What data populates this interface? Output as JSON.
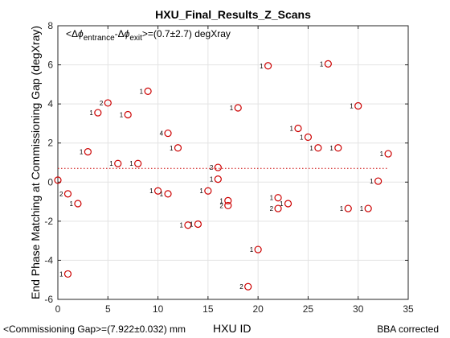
{
  "chart_data": {
    "type": "scatter",
    "title": "HXU_Final_Results_Z_Scans",
    "xlabel": "HXU ID",
    "ylabel": "End Phase Matching at Commissioning Gap (degXray)",
    "xlim": [
      0,
      35
    ],
    "ylim": [
      -6,
      8
    ],
    "xticks": [
      0,
      5,
      10,
      15,
      20,
      25,
      30,
      35
    ],
    "yticks": [
      -6,
      -4,
      -2,
      0,
      2,
      4,
      6,
      8
    ],
    "grid": true,
    "annotation": {
      "prefix": "<Δ",
      "phi1": "ϕ",
      "sub1": "entrance",
      "mid": "-Δ",
      "phi2": "ϕ",
      "sub2": "exit",
      "suffix": ">=(0.7±2.7) degXray"
    },
    "reference_line": {
      "y": 0.7,
      "color": "#cc0000",
      "style": "dotted"
    },
    "marker_color": "#cc0000",
    "points": [
      {
        "x": 0,
        "y": 0.1,
        "label": ""
      },
      {
        "x": 1,
        "y": -0.6,
        "label": "2"
      },
      {
        "x": 1,
        "y": -4.7,
        "label": "1"
      },
      {
        "x": 2,
        "y": -1.1,
        "label": "1"
      },
      {
        "x": 3,
        "y": 1.55,
        "label": "1"
      },
      {
        "x": 4,
        "y": 3.55,
        "label": "1"
      },
      {
        "x": 5,
        "y": 4.05,
        "label": "2"
      },
      {
        "x": 6,
        "y": 0.95,
        "label": "1"
      },
      {
        "x": 7,
        "y": 3.45,
        "label": "1"
      },
      {
        "x": 8,
        "y": 0.95,
        "label": "1"
      },
      {
        "x": 9,
        "y": 4.65,
        "label": "1"
      },
      {
        "x": 10,
        "y": -0.45,
        "label": "1"
      },
      {
        "x": 11,
        "y": 2.5,
        "label": "4"
      },
      {
        "x": 11,
        "y": -0.6,
        "label": "1"
      },
      {
        "x": 12,
        "y": 1.75,
        "label": "1"
      },
      {
        "x": 13,
        "y": -2.2,
        "label": "1"
      },
      {
        "x": 14,
        "y": -2.15,
        "label": "1"
      },
      {
        "x": 15,
        "y": -0.45,
        "label": "1"
      },
      {
        "x": 16,
        "y": 0.75,
        "label": "2"
      },
      {
        "x": 16,
        "y": 0.15,
        "label": "1"
      },
      {
        "x": 17,
        "y": -0.95,
        "label": "1"
      },
      {
        "x": 17,
        "y": -1.2,
        "label": "2"
      },
      {
        "x": 18,
        "y": 3.8,
        "label": "1"
      },
      {
        "x": 19,
        "y": -5.35,
        "label": "2"
      },
      {
        "x": 20,
        "y": -3.45,
        "label": "1"
      },
      {
        "x": 21,
        "y": 5.95,
        "label": "1"
      },
      {
        "x": 22,
        "y": -0.8,
        "label": "1"
      },
      {
        "x": 22,
        "y": -1.35,
        "label": "2"
      },
      {
        "x": 23,
        "y": -1.1,
        "label": "1"
      },
      {
        "x": 24,
        "y": 2.75,
        "label": "1"
      },
      {
        "x": 25,
        "y": 2.3,
        "label": "1"
      },
      {
        "x": 26,
        "y": 1.75,
        "label": "1"
      },
      {
        "x": 27,
        "y": 6.05,
        "label": "1"
      },
      {
        "x": 28,
        "y": 1.75,
        "label": "1"
      },
      {
        "x": 29,
        "y": -1.35,
        "label": "1"
      },
      {
        "x": 30,
        "y": 3.9,
        "label": "1"
      },
      {
        "x": 31,
        "y": -1.35,
        "label": "1"
      },
      {
        "x": 32,
        "y": 0.05,
        "label": "1"
      },
      {
        "x": 33,
        "y": 1.45,
        "label": "1"
      }
    ]
  },
  "footer": {
    "left": "<Commissioning Gap>=(7.922±0.032) mm",
    "right": "BBA corrected"
  }
}
